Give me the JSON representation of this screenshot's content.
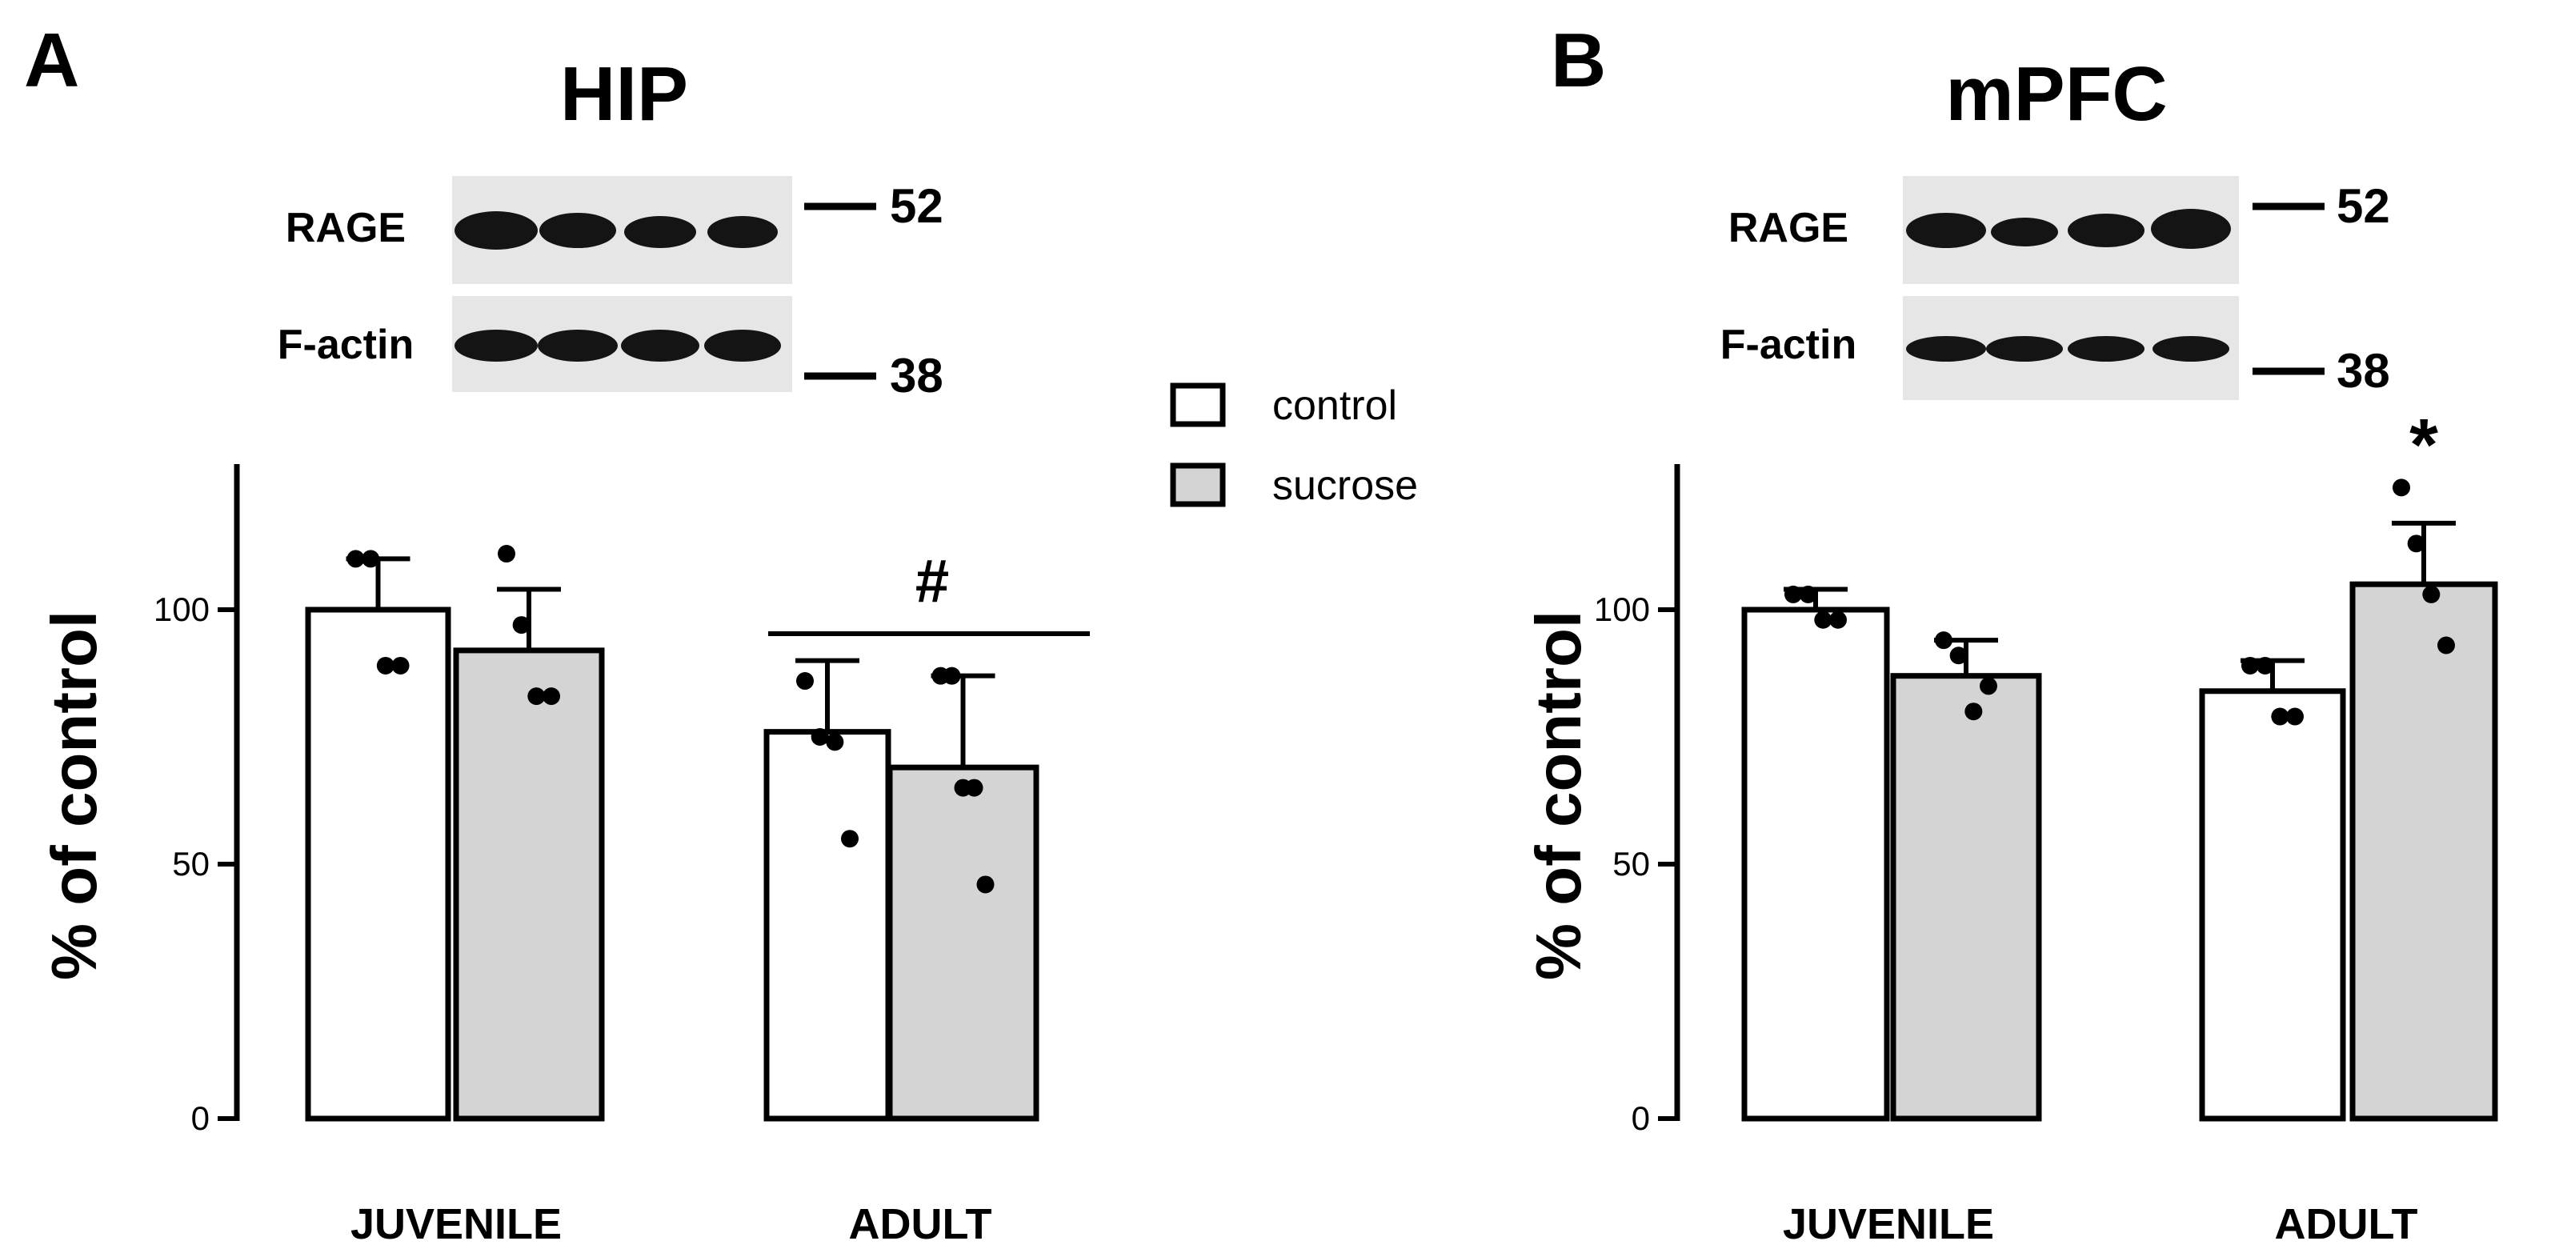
{
  "legend": {
    "entries": [
      {
        "name": "control",
        "fill": "#ffffff"
      },
      {
        "name": "sucrose",
        "fill": "#d4d4d4"
      }
    ]
  },
  "blot": {
    "row_labels": [
      "RAGE",
      "F-actin"
    ],
    "mw_markers": [
      "52",
      "38"
    ],
    "lanes": 4
  },
  "chart_data": [
    {
      "type": "bar",
      "panel": "A",
      "title": "HIP",
      "ylabel": "% of control",
      "xlabel": "",
      "ylim": [
        0,
        130
      ],
      "yticks": [
        0,
        50,
        100
      ],
      "categories": [
        "JUVENILE",
        "ADULT"
      ],
      "series": [
        {
          "name": "control",
          "values": [
            100,
            76
          ],
          "errors": [
            10,
            14
          ],
          "points": [
            [
              110,
              110,
              89,
              89
            ],
            [
              86,
              75,
              74,
              55
            ]
          ]
        },
        {
          "name": "sucrose",
          "values": [
            92,
            69
          ],
          "errors": [
            12,
            18
          ],
          "points": [
            [
              111,
              97,
              83,
              83
            ],
            [
              87,
              87,
              65,
              65,
              46
            ]
          ]
        }
      ],
      "annotations": [
        {
          "text": "#",
          "category": "ADULT",
          "type": "bracket"
        }
      ]
    },
    {
      "type": "bar",
      "panel": "B",
      "title": "mPFC",
      "ylabel": "% of control",
      "xlabel": "",
      "ylim": [
        0,
        130
      ],
      "yticks": [
        0,
        50,
        100
      ],
      "categories": [
        "JUVENILE",
        "ADULT"
      ],
      "series": [
        {
          "name": "control",
          "values": [
            100,
            84
          ],
          "errors": [
            4,
            6
          ],
          "points": [
            [
              103,
              103,
              98,
              98
            ],
            [
              89,
              89,
              79,
              79
            ]
          ]
        },
        {
          "name": "sucrose",
          "values": [
            87,
            105
          ],
          "errors": [
            7,
            12
          ],
          "points": [
            [
              94,
              91,
              80,
              85
            ],
            [
              124,
              113,
              103,
              93
            ]
          ]
        }
      ],
      "annotations": [
        {
          "text": "*",
          "category": "ADULT",
          "series": "sucrose",
          "type": "star"
        }
      ]
    }
  ]
}
